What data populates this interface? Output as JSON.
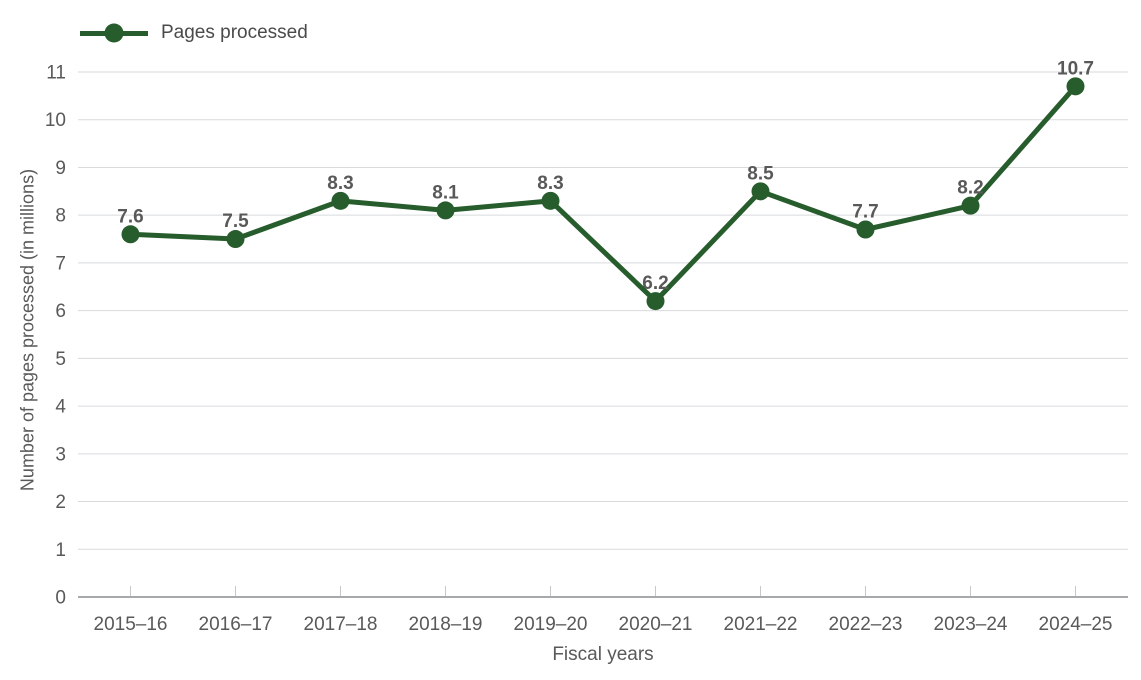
{
  "chart_data": {
    "type": "line",
    "categories": [
      "2015–16",
      "2016–17",
      "2017–18",
      "2018–19",
      "2019–20",
      "2020–21",
      "2021–22",
      "2022–23",
      "2023–24",
      "2024–25"
    ],
    "series": [
      {
        "name": "Pages processed",
        "values": [
          7.6,
          7.5,
          8.3,
          8.1,
          8.3,
          6.2,
          8.5,
          7.7,
          8.2,
          10.7
        ]
      }
    ],
    "data_labels": [
      "7.6",
      "7.5",
      "8.3",
      "8.1",
      "8.3",
      "6.2",
      "8.5",
      "7.7",
      "8.2",
      "10.7"
    ],
    "xlabel": "Fiscal years",
    "ylabel": "Number of pages processed (in millions)",
    "ylim": [
      0,
      11
    ],
    "yticks": [
      0,
      1,
      2,
      3,
      4,
      5,
      6,
      7,
      8,
      9,
      10,
      11
    ],
    "grid": "horizontal",
    "legend_position": "top-left",
    "show_markers": true,
    "colors": {
      "line": "#275C2D",
      "marker": "#275C2D",
      "data_label": "#595959",
      "tick_label": "#595959",
      "axis_title": "#595959",
      "legend_text": "#4a4a4a",
      "gridline": "#D8DADC",
      "axis_line": "#A7AAAD",
      "tick_mark": "#C7CACD",
      "background": "#FFFFFF"
    }
  }
}
